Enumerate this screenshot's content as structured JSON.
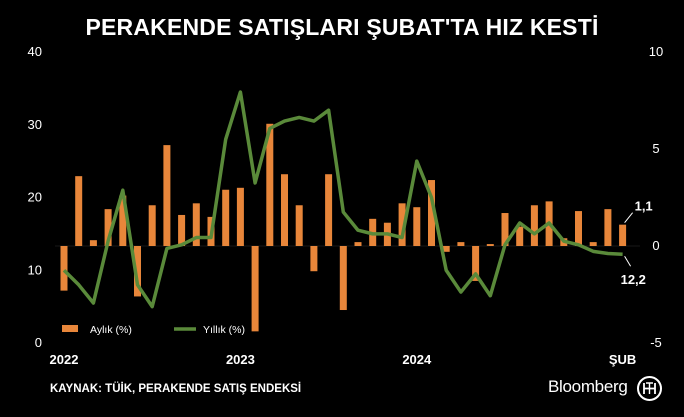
{
  "chart_data": {
    "type": "bar+line",
    "title": "PERAKENDE SATIŞLARI ŞUBAT'TA HIZ KESTİ",
    "x_tick_labels": [
      "2022",
      "2023",
      "2024",
      "ŞUB"
    ],
    "left_axis": {
      "ylim": [
        0,
        40
      ],
      "ticks": [
        "0",
        "10",
        "20",
        "30",
        "40"
      ]
    },
    "right_axis": {
      "ylim": [
        -5,
        10
      ],
      "ticks": [
        "-5",
        "0",
        "5",
        "10"
      ]
    },
    "series": [
      {
        "name": "Aylık (%)",
        "type": "bar",
        "axis": "right",
        "color": "#e8863a",
        "values": [
          -2.3,
          3.6,
          0.3,
          1.9,
          2.6,
          -2.6,
          2.1,
          5.2,
          1.6,
          2.2,
          1.5,
          2.9,
          3.0,
          -4.4,
          6.3,
          3.7,
          2.1,
          -1.3,
          3.7,
          -3.3,
          0.2,
          1.4,
          1.2,
          2.2,
          2.0,
          3.4,
          -0.3,
          0.2,
          -1.8,
          0.1,
          1.7,
          1.0,
          2.1,
          2.3,
          0.4,
          1.8,
          0.2,
          1.9,
          1.1
        ]
      },
      {
        "name": "Yıllık (%)",
        "type": "line",
        "axis": "left",
        "color": "#5a8a3a",
        "values": [
          10,
          8,
          5.5,
          14,
          21,
          8,
          5,
          13,
          13.5,
          14.5,
          14.5,
          28,
          34.5,
          22,
          29.5,
          30.5,
          31,
          30.5,
          32,
          18,
          15.5,
          15,
          15,
          14.5,
          25,
          20,
          10,
          7,
          9.5,
          6.5,
          13.5,
          16.5,
          15,
          16.5,
          14,
          13.5,
          12.6,
          12.3,
          12.2
        ]
      }
    ],
    "annotations": [
      "1,1",
      "12,2"
    ],
    "legend_position": "bottom-left"
  },
  "source_text": "KAYNAK: TÜİK, PERAKENDE SATIŞ ENDEKSİ",
  "brand": "Bloomberg",
  "logo_text": "HT",
  "colors": {
    "background": "#000000",
    "bar": "#e8863a",
    "line": "#5a8a3a",
    "text": "#ffffff"
  }
}
